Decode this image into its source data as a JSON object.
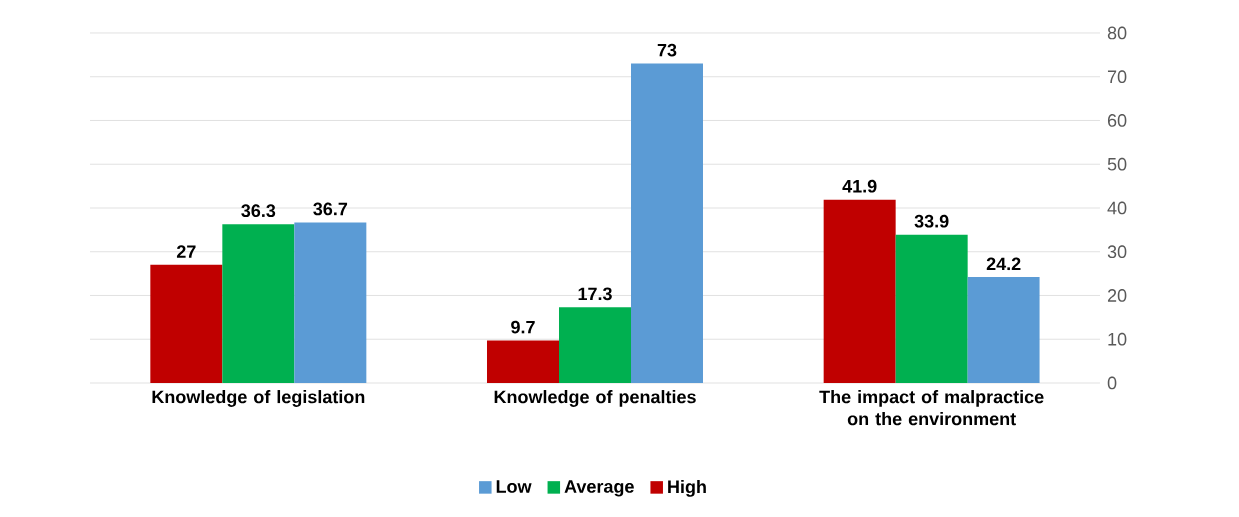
{
  "chart_data": {
    "type": "bar",
    "categories": [
      "Knowledge of legislation",
      "Knowledge of penalties",
      "The impact of malpractice on the environment"
    ],
    "series": [
      {
        "name": "High",
        "color": "#c00000",
        "values": [
          27,
          9.7,
          41.9
        ]
      },
      {
        "name": "Average",
        "color": "#00b050",
        "values": [
          36.3,
          17.3,
          33.9
        ]
      },
      {
        "name": "Low",
        "color": "#5b9bd5",
        "values": [
          36.7,
          73,
          24.2
        ]
      }
    ],
    "ylim": [
      0,
      80
    ],
    "yticks": [
      0,
      10,
      20,
      30,
      40,
      50,
      60,
      70,
      80
    ],
    "grid": "y",
    "legend": "bottom",
    "data_labels": true
  }
}
